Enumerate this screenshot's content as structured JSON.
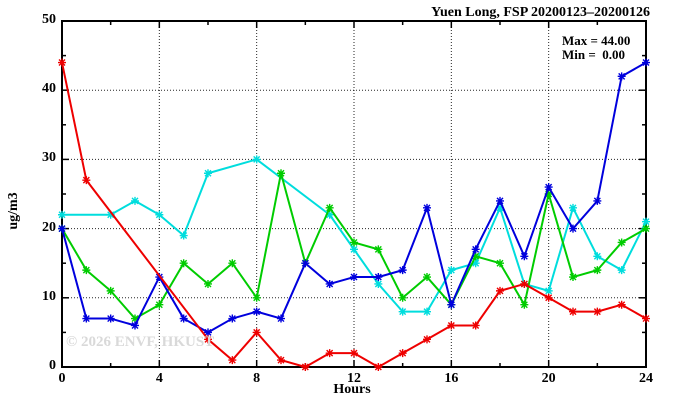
{
  "chart_data": {
    "type": "line",
    "title": "Yuen Long, FSP 20200123–20200126",
    "xlabel": "Hours",
    "ylabel": "ug/m3",
    "xlim": [
      0,
      24
    ],
    "ylim": [
      0,
      50
    ],
    "xticks": [
      0,
      4,
      8,
      12,
      16,
      20,
      24
    ],
    "xticks_minor": [
      2,
      6,
      10,
      14,
      18,
      22
    ],
    "yticks": [
      0,
      10,
      20,
      30,
      40,
      50
    ],
    "yticks_minor": [
      5,
      15,
      25,
      35,
      45
    ],
    "grid": true,
    "legend_position": "none",
    "x": [
      0,
      1,
      2,
      3,
      4,
      5,
      6,
      7,
      8,
      9,
      10,
      11,
      12,
      13,
      14,
      15,
      16,
      17,
      18,
      19,
      20,
      21,
      22,
      23,
      24
    ],
    "series": [
      {
        "name": "cyan-line",
        "color": "#00dddd",
        "values": [
          22,
          null,
          22,
          24,
          22,
          19,
          28,
          null,
          30,
          null,
          null,
          22,
          17,
          12,
          8,
          8,
          14,
          15,
          23,
          12,
          11,
          23,
          16,
          14,
          21
        ]
      },
      {
        "name": "green-line",
        "color": "#00cc00",
        "values": [
          20,
          14,
          11,
          7,
          9,
          15,
          12,
          15,
          10,
          28,
          15,
          23,
          18,
          17,
          10,
          13,
          9,
          16,
          15,
          9,
          25,
          13,
          14,
          18,
          20
        ]
      },
      {
        "name": "blue-line",
        "color": "#0000dd",
        "values": [
          20,
          7,
          7,
          6,
          13,
          7,
          5,
          7,
          8,
          7,
          15,
          12,
          13,
          13,
          14,
          23,
          9,
          17,
          24,
          16,
          26,
          20,
          24,
          42,
          44
        ]
      },
      {
        "name": "red-line",
        "color": "#ee0000",
        "values": [
          44,
          27,
          null,
          null,
          null,
          null,
          4,
          1,
          5,
          1,
          0,
          2,
          2,
          0,
          2,
          4,
          6,
          6,
          11,
          12,
          10,
          8,
          8,
          9,
          7
        ]
      }
    ],
    "annotations": {
      "max_label": "Max = 44.00",
      "min_label": "Min =  0.00"
    },
    "watermark": "© 2026 ENVF, HKUST",
    "axis_color": "#000000",
    "grid_style": "dotted"
  }
}
